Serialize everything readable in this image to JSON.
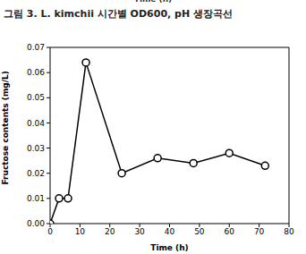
{
  "chart_data": {
    "type": "line",
    "title": "그림 3. L. kimchii 시간별 OD600, pH 생장곡선",
    "annotations": [
      "Time (h)"
    ],
    "x_label": "Time (h)",
    "y_label": "Fructose contents (mg/L)",
    "x": [
      0,
      3,
      6,
      12,
      24,
      36,
      48,
      60,
      72
    ],
    "values": [
      0.0,
      0.01,
      0.01,
      0.064,
      0.02,
      0.026,
      0.024,
      0.028,
      0.023
    ],
    "xlim": [
      0,
      80
    ],
    "xticks": [
      0,
      10,
      20,
      30,
      40,
      50,
      60,
      70,
      80
    ],
    "ylim": [
      0,
      0.07
    ],
    "yticks": [
      {
        "value": 0,
        "label": "0.00"
      },
      0.01,
      0.02,
      0.03,
      0.04,
      0.05,
      0.06,
      0.07
    ],
    "color": "#000000",
    "marker": "circle",
    "line_style": "solid",
    "grid": false
  }
}
